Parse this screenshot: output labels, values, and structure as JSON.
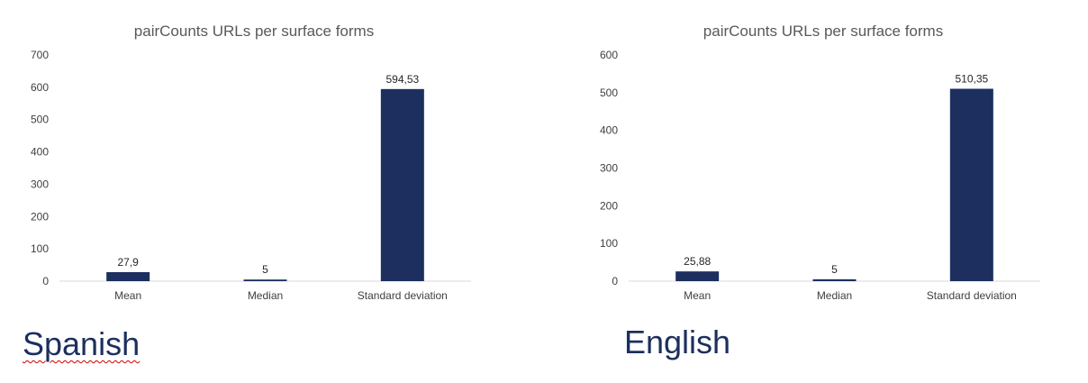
{
  "chart_data": [
    {
      "type": "bar",
      "title": "pairCounts URLs per surface forms",
      "categories": [
        "Mean",
        "Median",
        "Standard deviation"
      ],
      "values": [
        27.9,
        5,
        594.53
      ],
      "value_labels": [
        "27,9",
        "5",
        "594,53"
      ],
      "ylim": [
        0,
        700
      ],
      "yticks": [
        "0",
        "100",
        "200",
        "300",
        "400",
        "500",
        "600",
        "700"
      ],
      "grid": false,
      "bar_color": "#1c2f5e"
    },
    {
      "type": "bar",
      "title": "pairCounts URLs per surface forms",
      "categories": [
        "Mean",
        "Median",
        "Standard deviation"
      ],
      "values": [
        25.88,
        5,
        510.35
      ],
      "value_labels": [
        "25,88",
        "5",
        "510,35"
      ],
      "ylim": [
        0,
        600
      ],
      "yticks": [
        "0",
        "100",
        "200",
        "300",
        "400",
        "500",
        "600"
      ],
      "grid": false,
      "bar_color": "#1c2f5e"
    }
  ],
  "captions": {
    "spanish": "Spanish",
    "english": "English"
  }
}
